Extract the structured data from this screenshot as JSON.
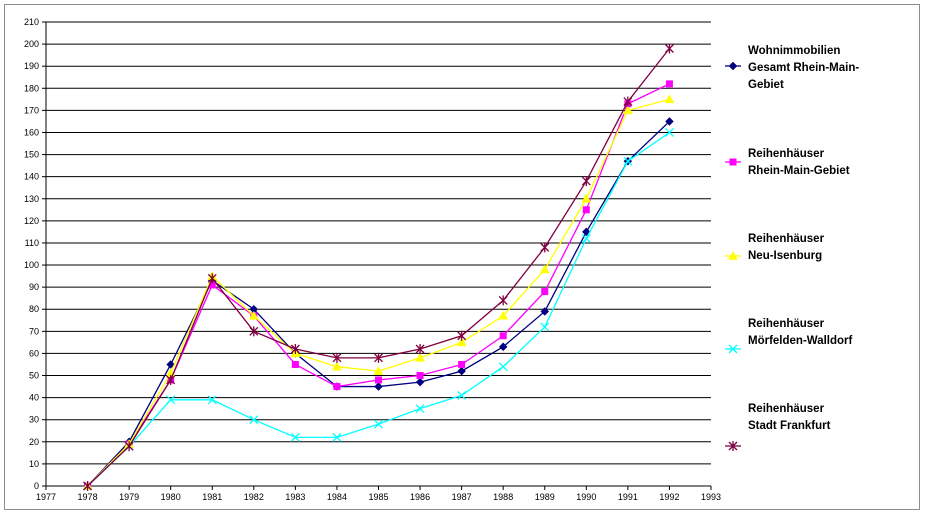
{
  "chart_data": {
    "type": "line",
    "title": "",
    "xlabel": "",
    "ylabel": "",
    "xlim": [
      1977,
      1993
    ],
    "ylim": [
      0,
      210
    ],
    "ytick_step": 10,
    "xticks": [
      "1977",
      "1978",
      "1979",
      "1980",
      "1981",
      "1982",
      "1983",
      "1984",
      "1985",
      "1986",
      "1987",
      "1988",
      "1989",
      "1990",
      "1991",
      "1992",
      "1993"
    ],
    "yticks": [
      "0",
      "10",
      "20",
      "30",
      "40",
      "50",
      "60",
      "70",
      "80",
      "90",
      "100",
      "110",
      "120",
      "130",
      "140",
      "150",
      "160",
      "170",
      "180",
      "190",
      "200",
      "210"
    ],
    "grid": "horizontal",
    "legend_position": "right",
    "x": [
      1978,
      1979,
      1980,
      1981,
      1982,
      1983,
      1984,
      1985,
      1986,
      1987,
      1988,
      1989,
      1990,
      1991,
      1992
    ],
    "series": [
      {
        "name": "Wohnimmobilien Gesamt Rhein-Main-Gebiet",
        "legend_lines": [
          "Wohnimmobilien",
          "Gesamt Rhein-Main-",
          "Gebiet"
        ],
        "color": "#000080",
        "marker": "diamond",
        "values": [
          0,
          20,
          55,
          93,
          80,
          60,
          45,
          45,
          47,
          52,
          63,
          79,
          115,
          147,
          165
        ]
      },
      {
        "name": "Reihenhäuser Rhein-Main-Gebiet",
        "legend_lines": [
          "Reihenhäuser",
          "Rhein-Main-Gebiet"
        ],
        "color": "#ff00ff",
        "marker": "square",
        "values": [
          0,
          19,
          48,
          91,
          77,
          55,
          45,
          48,
          50,
          55,
          68,
          88,
          125,
          173,
          182
        ]
      },
      {
        "name": "Reihenhäuser Neu-Isenburg",
        "legend_lines": [
          "Reihenhäuser",
          "Neu-Isenburg"
        ],
        "color": "#ffff00",
        "marker": "triangle",
        "values": [
          0,
          19,
          51,
          95,
          77,
          60,
          54,
          52,
          58,
          65,
          77,
          98,
          130,
          170,
          175
        ]
      },
      {
        "name": "Reihenhäuser Mörfelden-Walldorf",
        "legend_lines": [
          "Reihenhäuser",
          "Mörfelden-Walldorf"
        ],
        "color": "#00ffff",
        "marker": "x",
        "values": [
          0,
          18,
          39,
          39,
          30,
          22,
          22,
          28,
          35,
          41,
          54,
          72,
          112,
          147,
          160
        ]
      },
      {
        "name": "Reihenhäuser Stadt Frankfurt",
        "legend_lines": [
          "Reihenhäuser",
          "Stadt Frankfurt"
        ],
        "color": "#800040",
        "marker": "star",
        "values": [
          0,
          18,
          48,
          94,
          70,
          62,
          58,
          58,
          62,
          68,
          84,
          108,
          138,
          174,
          198
        ]
      }
    ]
  }
}
